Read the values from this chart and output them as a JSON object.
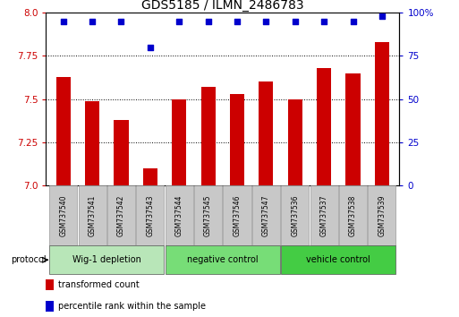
{
  "title": "GDS5185 / ILMN_2486783",
  "samples": [
    "GSM737540",
    "GSM737541",
    "GSM737542",
    "GSM737543",
    "GSM737544",
    "GSM737545",
    "GSM737546",
    "GSM737547",
    "GSM737536",
    "GSM737537",
    "GSM737538",
    "GSM737539"
  ],
  "bar_values": [
    7.63,
    7.49,
    7.38,
    7.1,
    7.5,
    7.57,
    7.53,
    7.6,
    7.5,
    7.68,
    7.65,
    7.83
  ],
  "dot_values": [
    95,
    95,
    95,
    80,
    95,
    95,
    95,
    95,
    95,
    95,
    95,
    98
  ],
  "ylim": [
    7.0,
    8.0
  ],
  "y2lim": [
    0,
    100
  ],
  "yticks": [
    7.0,
    7.25,
    7.5,
    7.75,
    8.0
  ],
  "y2ticks": [
    0,
    25,
    50,
    75,
    100
  ],
  "y2tick_labels": [
    "0",
    "25",
    "50",
    "75",
    "100%"
  ],
  "bar_color": "#cc0000",
  "dot_color": "#0000cc",
  "bar_bottom": 7.0,
  "groups": [
    {
      "label": "Wig-1 depletion",
      "start": 0,
      "end": 3,
      "color": "#b8e6b8"
    },
    {
      "label": "negative control",
      "start": 4,
      "end": 7,
      "color": "#77dd77"
    },
    {
      "label": "vehicle control",
      "start": 8,
      "end": 11,
      "color": "#44cc44"
    }
  ],
  "protocol_label": "protocol",
  "legend_items": [
    {
      "color": "#cc0000",
      "label": "transformed count"
    },
    {
      "color": "#0000cc",
      "label": "percentile rank within the sample"
    }
  ],
  "sample_box_color": "#c8c8c8",
  "sample_box_edge": "#999999",
  "title_fontsize": 10,
  "tick_fontsize": 7.5,
  "label_fontsize": 7,
  "bar_width": 0.5
}
